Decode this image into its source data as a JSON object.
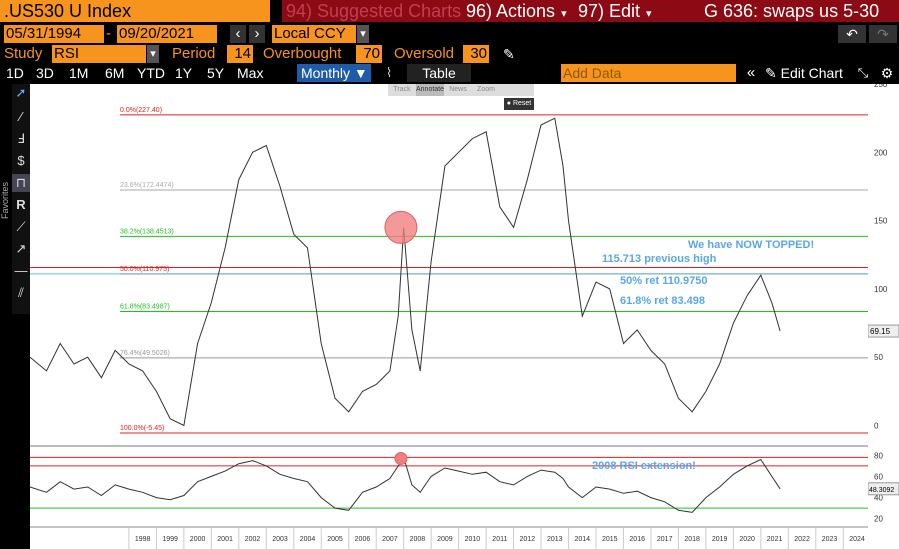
{
  "header": {
    "ticker": ".US530 U Index",
    "suggested": "94) Suggested Charts",
    "actions": "96) Actions",
    "edit": "97) Edit",
    "title": "G 636: swaps us 5-30"
  },
  "daterow": {
    "start": "05/31/1994",
    "dash": "-",
    "end": "09/20/2021",
    "prev": "‹",
    "next": "›",
    "currency": "Local CCY"
  },
  "studyrow": {
    "study_label": "Study",
    "study_value": "RSI",
    "period_label": "Period",
    "period_value": "14",
    "overbought_label": "Overbought",
    "overbought_value": "70",
    "oversold_label": "Oversold",
    "oversold_value": "30"
  },
  "periods": [
    "1D",
    "3D",
    "1M",
    "6M",
    "YTD",
    "1Y",
    "5Y",
    "Max"
  ],
  "monthly": "Monthly ▼",
  "table": "Table",
  "add_data_placeholder": "Add Data",
  "edit_chart": "Edit Chart",
  "annot_bar": [
    "Track",
    "Annotate",
    "News",
    "Zoom"
  ],
  "reset": "Reset",
  "favorites": "Favorites",
  "main_chart": {
    "fib_labels": [
      "0.0%(227.40)",
      "23.6%(172.4474)",
      "38.2%(138.4513)",
      "50.0%(110.975)",
      "61.8%(83.4987)",
      "76.4%(49.5026)",
      "100.0%(-5.45)"
    ],
    "annotations": [
      "We have NOW TOPPED!",
      "115.713 previous high",
      "50% ret 110.9750",
      "61.8% ret 83.498"
    ],
    "last_value": "69.15"
  },
  "rsi_chart": {
    "annotation": "2008 RSI extension!",
    "last_value": "48.3092"
  },
  "chart_data": [
    {
      "type": "line",
      "title": "",
      "xlabel": "",
      "ylabel": "",
      "ylim": [
        -15,
        250
      ],
      "y_ticks": [
        0,
        50,
        100,
        150,
        200,
        250
      ],
      "x": [
        1994.4,
        1995.0,
        1995.5,
        1996.0,
        1996.5,
        1997.0,
        1997.5,
        1998.0,
        1998.5,
        1999.0,
        1999.5,
        2000.0,
        2000.5,
        2001.0,
        2001.5,
        2002.0,
        2002.5,
        2003.0,
        2003.5,
        2004.0,
        2004.5,
        2005.0,
        2005.5,
        2006.0,
        2006.5,
        2007.0,
        2007.5,
        2007.8,
        2008.0,
        2008.3,
        2008.6,
        2009.0,
        2009.5,
        2010.0,
        2010.5,
        2011.0,
        2011.5,
        2012.0,
        2012.5,
        2013.0,
        2013.5,
        2013.8,
        2014.0,
        2014.5,
        2015.0,
        2015.5,
        2016.0,
        2016.5,
        2017.0,
        2017.5,
        2018.0,
        2018.5,
        2019.0,
        2019.5,
        2020.0,
        2020.5,
        2021.0,
        2021.4,
        2021.7
      ],
      "series": [
        {
          "values": [
            50,
            40,
            60,
            45,
            50,
            35,
            55,
            45,
            40,
            25,
            5,
            0,
            60,
            90,
            130,
            180,
            200,
            205,
            175,
            140,
            130,
            60,
            20,
            10,
            25,
            30,
            40,
            80,
            145,
            70,
            40,
            120,
            190,
            200,
            210,
            215,
            160,
            145,
            180,
            220,
            225,
            190,
            150,
            80,
            105,
            100,
            60,
            70,
            55,
            45,
            20,
            10,
            25,
            45,
            75,
            95,
            110,
            90,
            69.15
          ]
        }
      ],
      "fib_levels": [
        227.4,
        172.4474,
        138.4513,
        110.975,
        83.4987,
        49.5026,
        -5.45
      ],
      "x_tick_labels": [
        "1998",
        "1999",
        "2000",
        "2001",
        "2002",
        "2003",
        "2004",
        "2005",
        "2006",
        "2007",
        "2008",
        "2009",
        "2010",
        "2011",
        "2012",
        "2013",
        "2014",
        "2015",
        "2016",
        "2017",
        "2018",
        "2019",
        "2020",
        "2021",
        "2022",
        "2023",
        "2024"
      ]
    },
    {
      "type": "line",
      "title": "",
      "xlabel": "",
      "ylabel": "",
      "ylim": [
        15,
        85
      ],
      "y_ticks": [
        20,
        40,
        60,
        80
      ],
      "levels": [
        70,
        30
      ],
      "x": [
        1994.4,
        1995.0,
        1995.5,
        1996.0,
        1996.5,
        1997.0,
        1997.5,
        1998.0,
        1998.5,
        1999.0,
        1999.5,
        2000.0,
        2000.5,
        2001.0,
        2001.5,
        2002.0,
        2002.5,
        2003.0,
        2003.5,
        2004.0,
        2004.5,
        2005.0,
        2005.5,
        2006.0,
        2006.5,
        2007.0,
        2007.5,
        2007.8,
        2008.0,
        2008.3,
        2008.6,
        2009.0,
        2009.5,
        2010.0,
        2010.5,
        2011.0,
        2011.5,
        2012.0,
        2012.5,
        2013.0,
        2013.5,
        2013.8,
        2014.0,
        2014.5,
        2015.0,
        2015.5,
        2016.0,
        2016.5,
        2017.0,
        2017.5,
        2018.0,
        2018.5,
        2019.0,
        2019.5,
        2020.0,
        2020.5,
        2021.0,
        2021.4,
        2021.7
      ],
      "series": [
        {
          "values": [
            50,
            45,
            55,
            48,
            50,
            42,
            52,
            48,
            45,
            40,
            38,
            42,
            55,
            60,
            65,
            72,
            75,
            70,
            62,
            58,
            55,
            40,
            30,
            28,
            45,
            50,
            58,
            70,
            78,
            52,
            45,
            60,
            68,
            65,
            62,
            64,
            55,
            52,
            60,
            66,
            64,
            58,
            50,
            40,
            50,
            48,
            44,
            46,
            40,
            36,
            28,
            26,
            40,
            50,
            62,
            70,
            76,
            60,
            48.3092
          ]
        }
      ]
    }
  ],
  "colors": {
    "orange": "#f7941d",
    "darkred": "#8b0a14",
    "blue_btn": "#1e5ba8",
    "annot_blue": "#5aa7e8",
    "fib_red": "#e02020",
    "fib_green": "#20c020",
    "fib_gray": "#999999"
  }
}
